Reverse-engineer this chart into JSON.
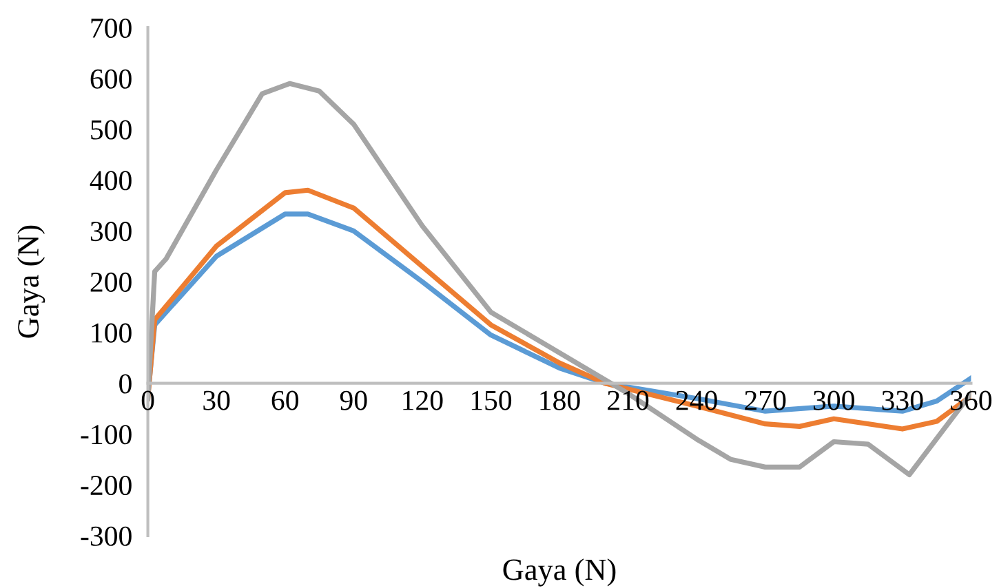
{
  "chart_data": {
    "type": "line",
    "xlabel": "Gaya (N)",
    "ylabel": "Gaya (N)",
    "xlim": [
      0,
      360
    ],
    "ylim": [
      -300,
      700
    ],
    "xticks": [
      0,
      30,
      60,
      90,
      120,
      150,
      180,
      210,
      240,
      270,
      300,
      330,
      360
    ],
    "yticks": [
      -300,
      -200,
      -100,
      0,
      100,
      200,
      300,
      400,
      500,
      600,
      700
    ],
    "grid": false,
    "legend": false,
    "marker": "none",
    "line_style": "solid",
    "series": [
      {
        "color": "#5b9bd5",
        "x": [
          0,
          3,
          10,
          30,
          60,
          70,
          90,
          120,
          150,
          180,
          200,
          240,
          270,
          300,
          330,
          345,
          360
        ],
        "values": [
          -25,
          115,
          150,
          250,
          333,
          333,
          300,
          200,
          95,
          30,
          0,
          -30,
          -55,
          -45,
          -55,
          -35,
          10
        ]
      },
      {
        "color": "#ed7d31",
        "x": [
          0,
          3,
          30,
          60,
          70,
          90,
          120,
          150,
          180,
          200,
          240,
          270,
          285,
          300,
          330,
          345,
          360
        ],
        "values": [
          -30,
          125,
          270,
          375,
          380,
          345,
          230,
          115,
          40,
          0,
          -45,
          -80,
          -85,
          -70,
          -90,
          -75,
          -25
        ]
      },
      {
        "color": "#a5a5a5",
        "x": [
          0,
          3,
          8,
          30,
          50,
          62,
          75,
          90,
          120,
          150,
          180,
          195,
          210,
          240,
          255,
          270,
          285,
          300,
          315,
          333,
          360
        ],
        "values": [
          -30,
          220,
          245,
          420,
          570,
          590,
          575,
          510,
          310,
          140,
          60,
          20,
          -20,
          -110,
          -150,
          -165,
          -165,
          -115,
          -120,
          -180,
          -20
        ]
      }
    ]
  }
}
